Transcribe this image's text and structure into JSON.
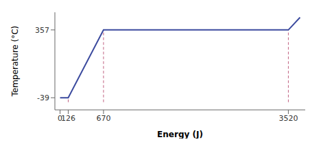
{
  "chart_data": {
    "type": "line",
    "x": [
      0,
      126,
      670,
      3520,
      3700
    ],
    "values": [
      -39,
      -39,
      357,
      357,
      430
    ],
    "color": "#3b4a9e",
    "xlabel": "Energy (J)",
    "ylabel": "Temperature (°C)",
    "xlim": [
      -80,
      3780
    ],
    "ylim": [
      -110,
      460
    ],
    "xticks": [
      0,
      126,
      670,
      3520
    ],
    "yticks": [
      -39,
      357
    ],
    "grid": false,
    "guide_lines": {
      "color": "#c06080",
      "line_style": "dashed",
      "from_y": -65,
      "x": [
        126,
        670,
        3520
      ],
      "to_y": [
        -39,
        357,
        357
      ]
    }
  }
}
